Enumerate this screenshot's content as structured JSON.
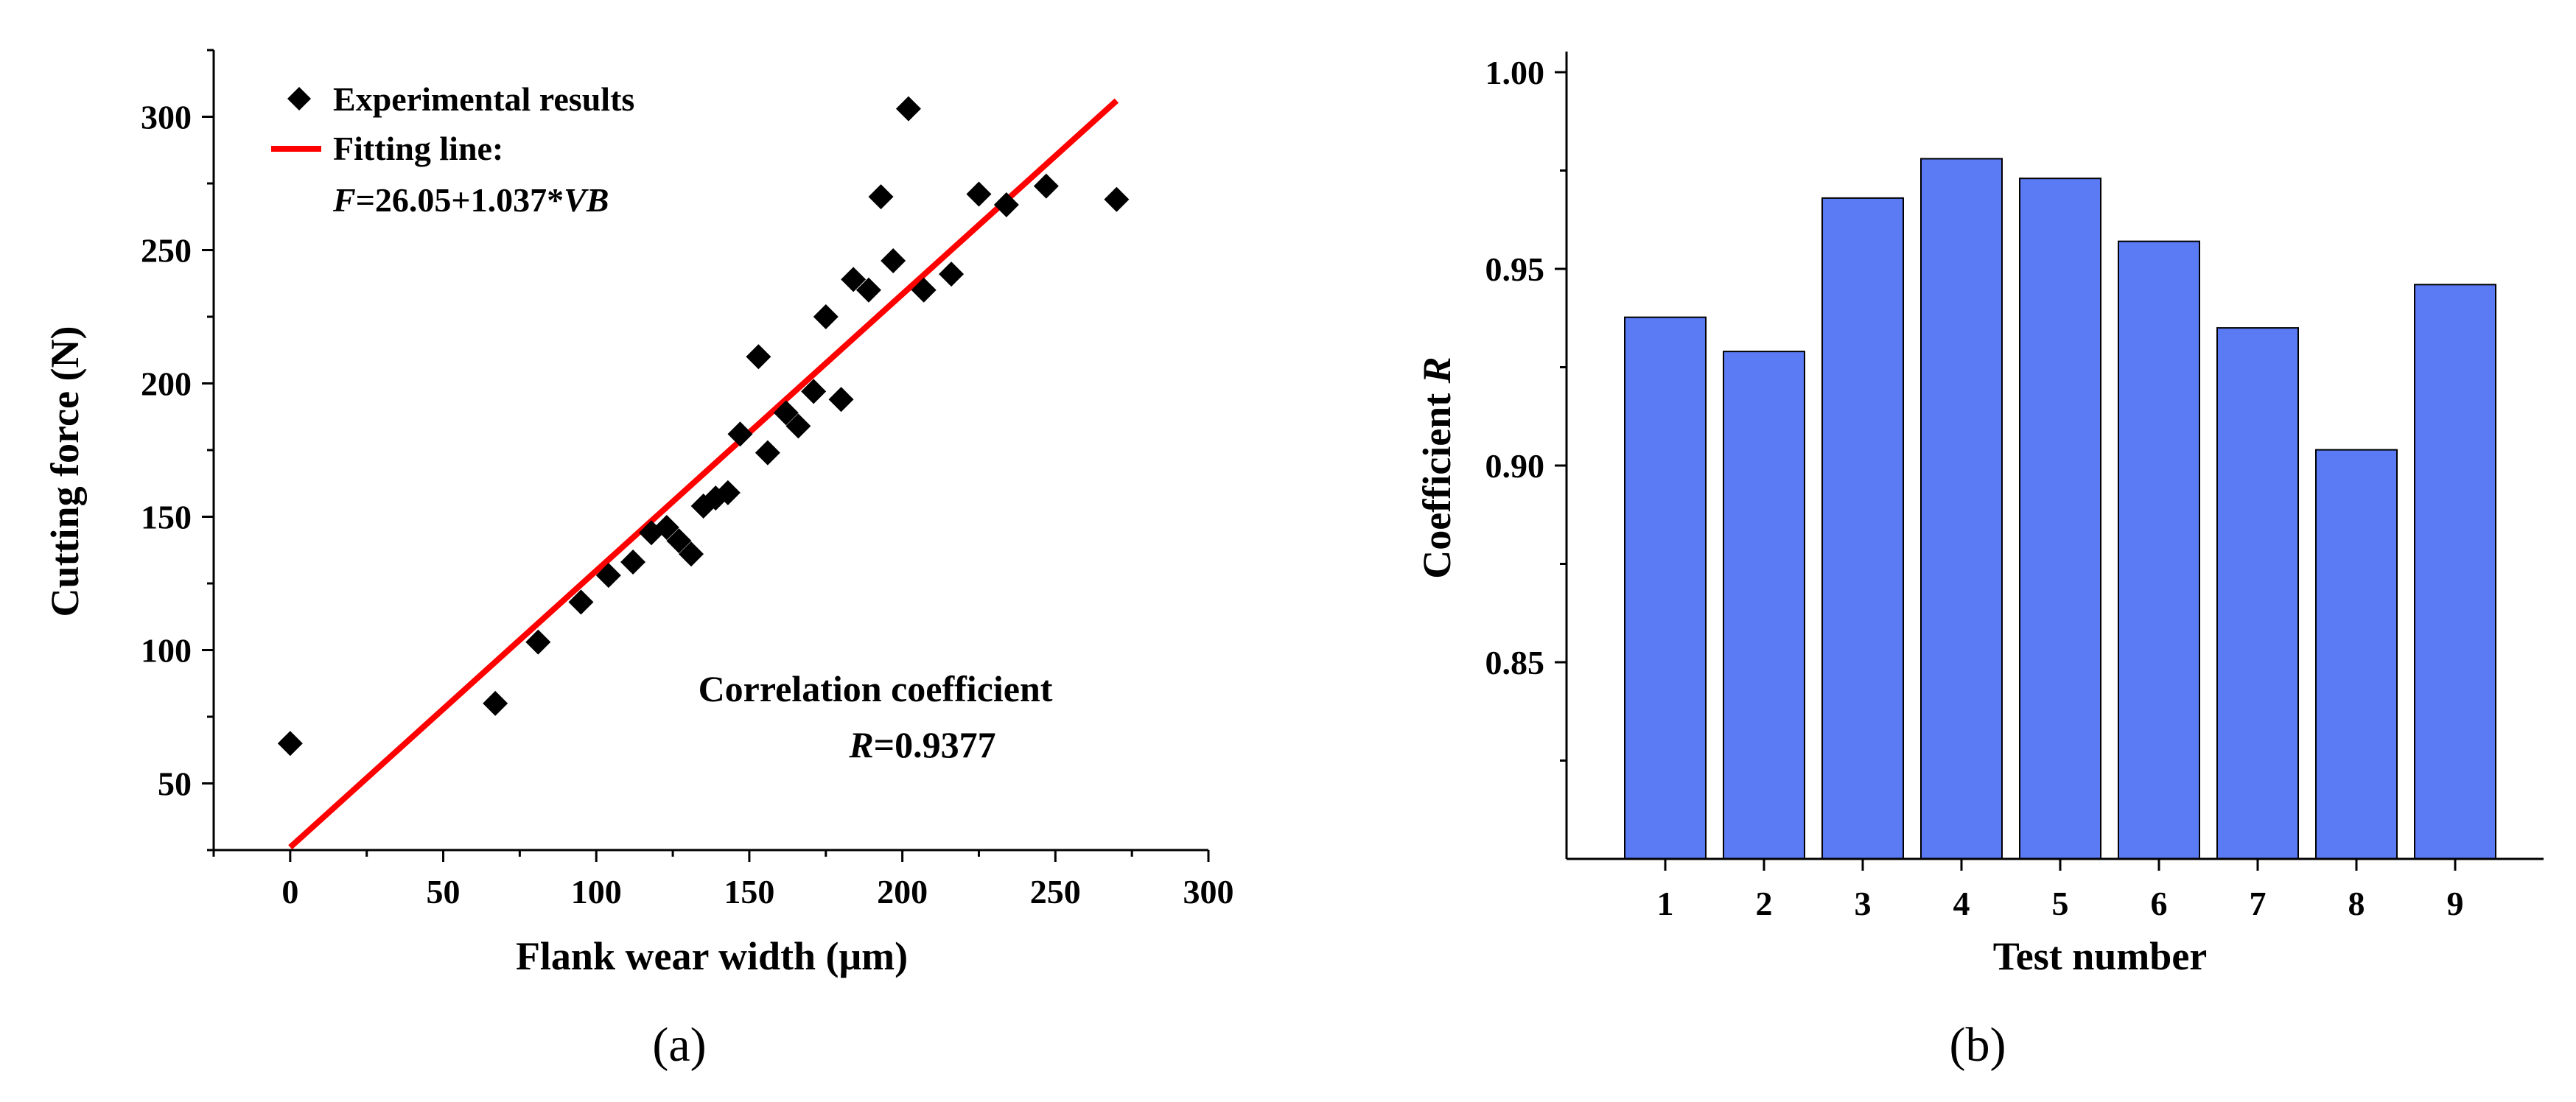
{
  "chart_data": [
    {
      "type": "scatter",
      "panel_label": "(a)",
      "xlabel": "Flank wear width (μm)",
      "ylabel": "Cutting force (N)",
      "xlim": [
        -25,
        300
      ],
      "ylim": [
        25,
        325
      ],
      "xticks": [
        0,
        50,
        100,
        150,
        200,
        250,
        300
      ],
      "yticks": [
        50,
        100,
        150,
        200,
        250,
        300
      ],
      "series": [
        {
          "name": "Experimental results",
          "marker": "diamond",
          "color": "#000000",
          "points": [
            [
              0,
              65
            ],
            [
              67,
              80
            ],
            [
              81,
              103
            ],
            [
              95,
              118
            ],
            [
              104,
              128
            ],
            [
              112,
              133
            ],
            [
              118,
              144
            ],
            [
              123,
              146
            ],
            [
              127,
              141
            ],
            [
              131,
              136
            ],
            [
              135,
              154
            ],
            [
              139,
              157
            ],
            [
              143,
              159
            ],
            [
              147,
              181
            ],
            [
              153,
              210
            ],
            [
              156,
              174
            ],
            [
              162,
              189
            ],
            [
              166,
              184
            ],
            [
              171,
              197
            ],
            [
              175,
              225
            ],
            [
              180,
              194
            ],
            [
              184,
              239
            ],
            [
              189,
              235
            ],
            [
              193,
              270
            ],
            [
              197,
              246
            ],
            [
              202,
              303
            ],
            [
              207,
              235
            ],
            [
              216,
              241
            ],
            [
              225,
              271
            ],
            [
              234,
              267
            ],
            [
              247,
              274
            ],
            [
              270,
              269
            ]
          ]
        }
      ],
      "fit": {
        "name": "Fitting line:",
        "equation": {
          "lhs": "F",
          "mid": "=26.05+1.037*",
          "var": "VB"
        },
        "intercept": 26.05,
        "slope": 1.037,
        "x_range": [
          0,
          270
        ],
        "color": "#ff0000"
      },
      "annotation": {
        "line1": "Correlation coefficient",
        "var": "R",
        "value": "=0.9377"
      },
      "legend_position": "top-left"
    },
    {
      "type": "bar",
      "panel_label": "(b)",
      "xlabel": "Test number",
      "ylabel_text": "Coefficient ",
      "ylabel_var": "R",
      "ylim": [
        0.81,
        1.0
      ],
      "yticks": [
        "0.85",
        "0.90",
        "0.95",
        "1.00"
      ],
      "categories": [
        "1",
        "2",
        "3",
        "4",
        "5",
        "6",
        "7",
        "8",
        "9"
      ],
      "values": [
        0.9377,
        0.929,
        0.968,
        0.978,
        0.973,
        0.957,
        0.935,
        0.904,
        0.946
      ],
      "bar_color": "#5b7bf5"
    }
  ]
}
